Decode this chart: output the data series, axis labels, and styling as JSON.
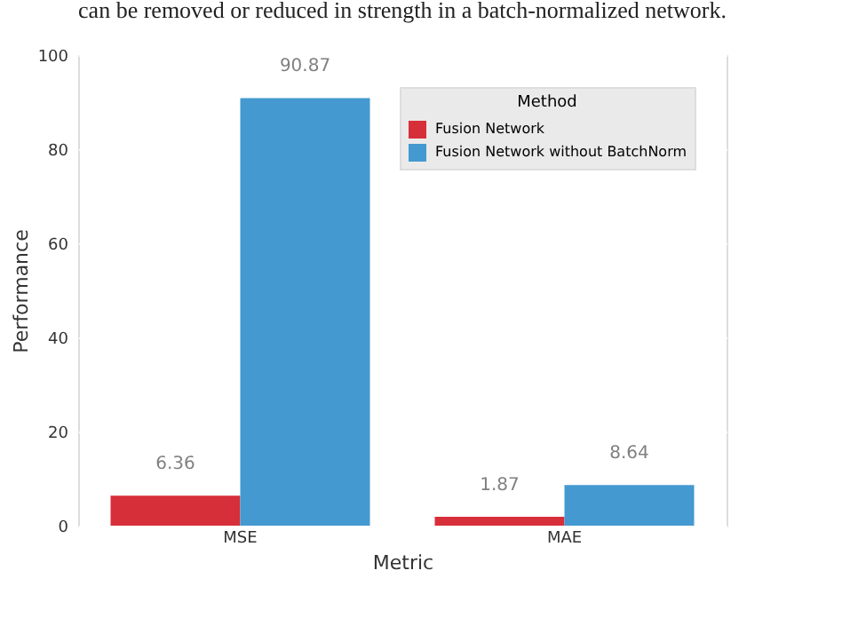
{
  "chart_data": {
    "type": "bar",
    "xlabel": "Metric",
    "ylabel": "Performance",
    "legend_title": "Method",
    "annotations": [
      "can be removed or reduced in strength in a batch-normalized network."
    ],
    "categories": [
      "MSE",
      "MAE"
    ],
    "series": [
      {
        "name": "Fusion Network",
        "color": "#d62f3a",
        "values": [
          6.36,
          1.87
        ]
      },
      {
        "name": "Fusion Network without BatchNorm",
        "color": "#4499d0",
        "values": [
          90.87,
          8.64
        ]
      }
    ],
    "ylim": [
      0,
      100
    ],
    "yticks": [
      0,
      20,
      40,
      60,
      80,
      100
    ],
    "grid": "y",
    "legend": "top right",
    "data_labels": true
  }
}
